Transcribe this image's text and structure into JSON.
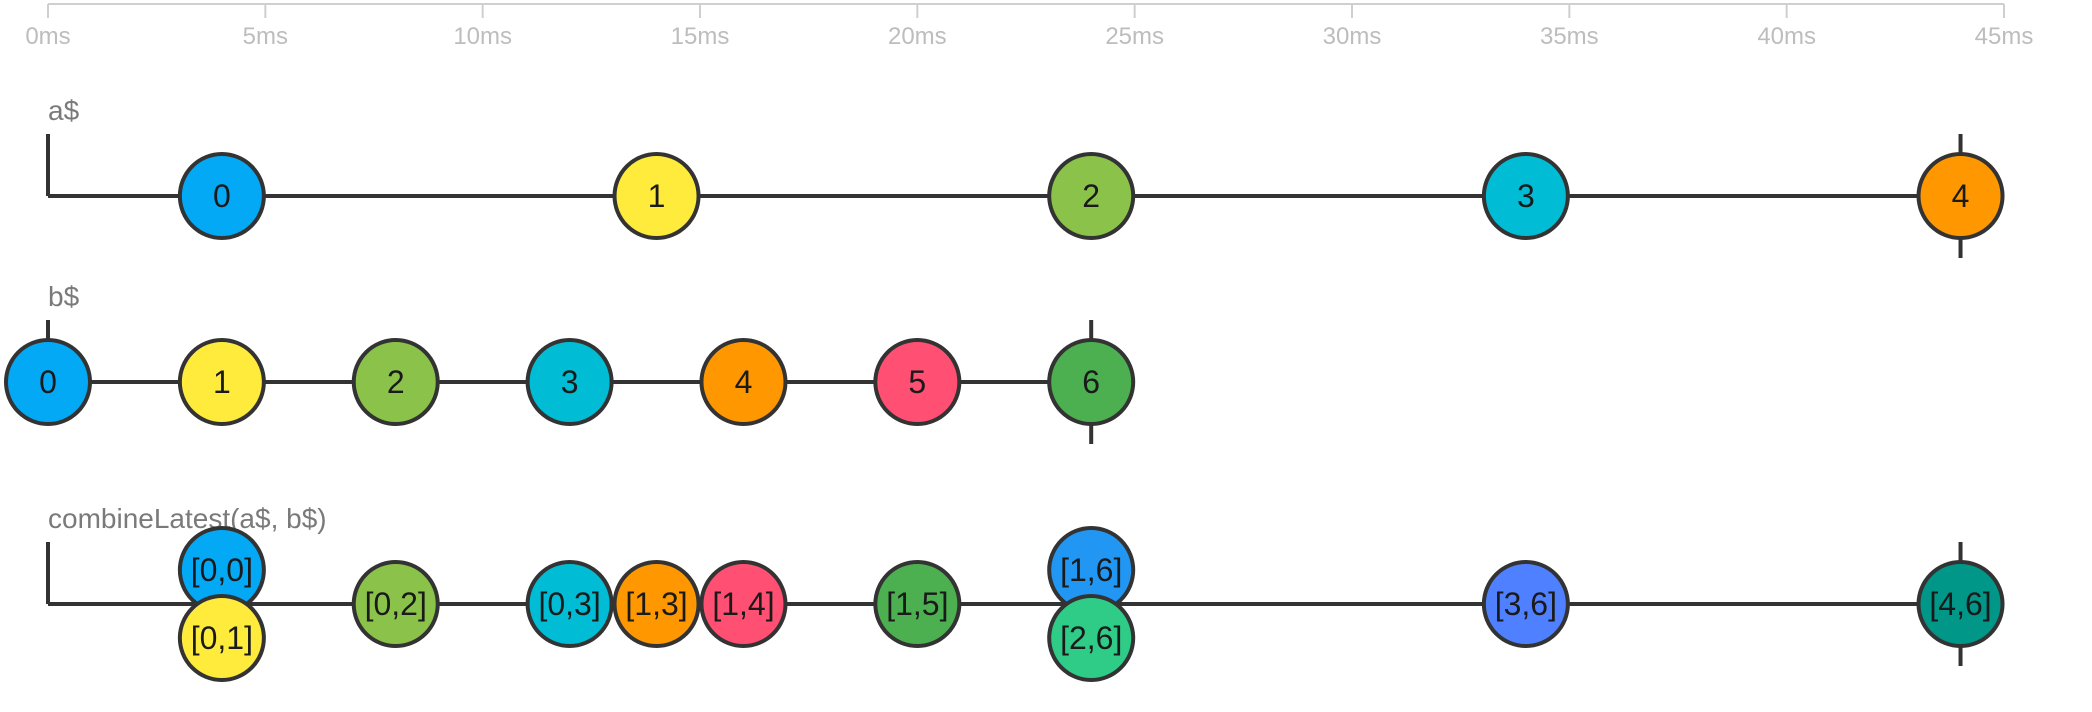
{
  "timeline": {
    "unit": "ms",
    "max": 45,
    "ticks": [
      {
        "value": 0,
        "label": "0ms"
      },
      {
        "value": 5,
        "label": "5ms"
      },
      {
        "value": 10,
        "label": "10ms"
      },
      {
        "value": 15,
        "label": "15ms"
      },
      {
        "value": 20,
        "label": "20ms"
      },
      {
        "value": 25,
        "label": "25ms"
      },
      {
        "value": 30,
        "label": "30ms"
      },
      {
        "value": 35,
        "label": "35ms"
      },
      {
        "value": 40,
        "label": "40ms"
      },
      {
        "value": 45,
        "label": "45ms"
      }
    ]
  },
  "streams": [
    {
      "id": "a",
      "label": "a$",
      "start": 0,
      "complete": 44,
      "marbles": [
        {
          "t": 4,
          "value": "0",
          "color": "#03a9f4"
        },
        {
          "t": 14,
          "value": "1",
          "color": "#ffeb3b"
        },
        {
          "t": 24,
          "value": "2",
          "color": "#8bc34a"
        },
        {
          "t": 34,
          "value": "3",
          "color": "#00bcd4"
        },
        {
          "t": 44,
          "value": "4",
          "color": "#ff9800"
        }
      ]
    },
    {
      "id": "b",
      "label": "b$",
      "start": 0,
      "complete": 24,
      "marbles": [
        {
          "t": 0,
          "value": "0",
          "color": "#03a9f4"
        },
        {
          "t": 4,
          "value": "1",
          "color": "#ffeb3b"
        },
        {
          "t": 8,
          "value": "2",
          "color": "#8bc34a"
        },
        {
          "t": 12,
          "value": "3",
          "color": "#00bcd4"
        },
        {
          "t": 16,
          "value": "4",
          "color": "#ff9800"
        },
        {
          "t": 20,
          "value": "5",
          "color": "#ff4f72"
        },
        {
          "t": 24,
          "value": "6",
          "color": "#4caf50"
        }
      ]
    },
    {
      "id": "combined",
      "label": "combineLatest(a$, b$)",
      "start": 0,
      "complete": 44,
      "marbles": [
        {
          "t": 4,
          "value": "[0,0]",
          "color": "#03a9f4",
          "stack": "up"
        },
        {
          "t": 4,
          "value": "[0,1]",
          "color": "#ffeb3b",
          "stack": "down"
        },
        {
          "t": 8,
          "value": "[0,2]",
          "color": "#8bc34a"
        },
        {
          "t": 12,
          "value": "[0,3]",
          "color": "#00bcd4"
        },
        {
          "t": 14,
          "value": "[1,3]",
          "color": "#ff9800"
        },
        {
          "t": 16,
          "value": "[1,4]",
          "color": "#ff4f72"
        },
        {
          "t": 20,
          "value": "[1,5]",
          "color": "#4caf50"
        },
        {
          "t": 24,
          "value": "[1,6]",
          "color": "#2196f3",
          "stack": "up"
        },
        {
          "t": 24,
          "value": "[2,6]",
          "color": "#2ecc87",
          "stack": "down"
        },
        {
          "t": 34,
          "value": "[3,6]",
          "color": "#4f80ff"
        },
        {
          "t": 44,
          "value": "[4,6]",
          "color": "#009688"
        }
      ]
    }
  ]
}
